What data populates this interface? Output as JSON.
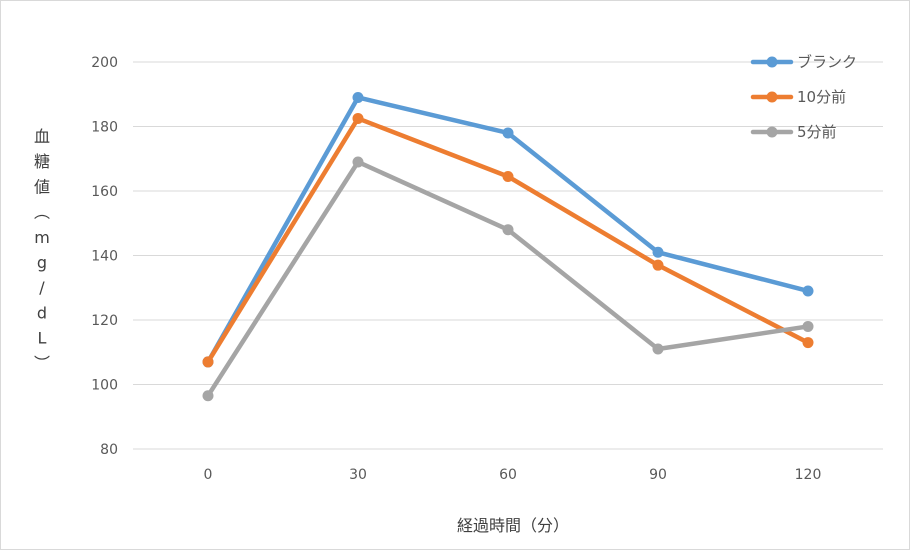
{
  "chart_data": {
    "type": "line",
    "title": "",
    "xlabel": "経過時間（分）",
    "ylabel": "血糖値（mg/dL）",
    "ylabel_chars": [
      "血",
      "糖",
      "値",
      "︵",
      "m",
      "g",
      "/",
      "d",
      "L",
      "︶"
    ],
    "categories": [
      "0",
      "30",
      "60",
      "90",
      "120"
    ],
    "ylim": [
      80,
      200
    ],
    "yticks": [
      "80",
      "100",
      "120",
      "140",
      "160",
      "180",
      "200"
    ],
    "grid": true,
    "legend_position": "top-right",
    "series": [
      {
        "name": "ブランク",
        "color": "#5b9bd5",
        "values": [
          107,
          189,
          178,
          141,
          129
        ]
      },
      {
        "name": "10分前",
        "color": "#ed7d31",
        "values": [
          107,
          182.5,
          164.5,
          137,
          113
        ]
      },
      {
        "name": "5分前",
        "color": "#a5a5a5",
        "values": [
          96.5,
          169,
          148,
          111,
          118
        ]
      }
    ]
  }
}
